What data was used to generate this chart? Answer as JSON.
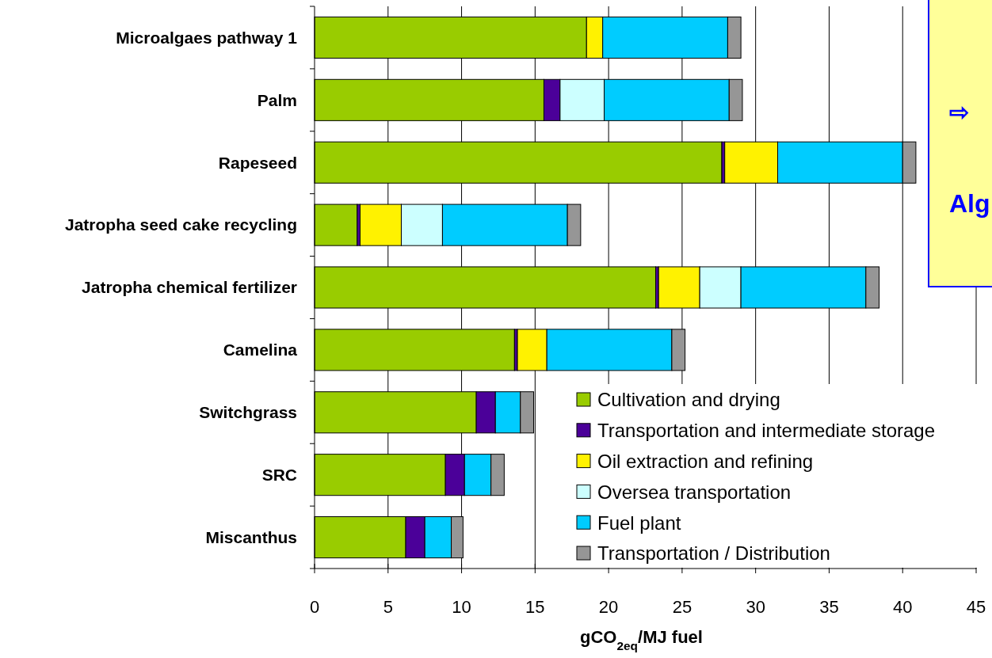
{
  "chart_data": {
    "type": "bar",
    "orientation": "horizontal",
    "stacked": true,
    "categories": [
      "Microalgaes pathway 1",
      "Palm",
      "Rapeseed",
      "Jatropha seed cake recycling",
      "Jatropha chemical fertilizer",
      "Camelina",
      "Switchgrass",
      "SRC",
      "Miscanthus"
    ],
    "series": [
      {
        "name": "Cultivation and drying",
        "color": "#99cc00",
        "values": [
          18.5,
          15.6,
          27.7,
          2.9,
          23.2,
          13.6,
          11.0,
          8.9,
          6.2
        ]
      },
      {
        "name": "Transportation and intermediate storage",
        "color": "#4b0099",
        "values": [
          null,
          1.1,
          0.2,
          0.2,
          0.2,
          0.2,
          1.3,
          1.3,
          1.3
        ]
      },
      {
        "name": "Oil extraction and refining",
        "color": "#fff200",
        "values": [
          1.1,
          null,
          3.6,
          2.8,
          2.8,
          2.0,
          null,
          null,
          null
        ]
      },
      {
        "name": "Oversea transportation",
        "color": "#ccffff",
        "values": [
          null,
          3.0,
          null,
          2.8,
          2.8,
          null,
          null,
          null,
          null
        ]
      },
      {
        "name": "Fuel plant",
        "color": "#00ccff",
        "values": [
          8.5,
          8.5,
          8.5,
          8.5,
          8.5,
          8.5,
          1.7,
          1.8,
          1.8
        ]
      },
      {
        "name": "Transportation / Distribution",
        "color": "#969696",
        "values": [
          0.9,
          0.9,
          0.9,
          0.9,
          0.9,
          0.9,
          0.9,
          0.9,
          0.8
        ]
      }
    ],
    "xlim": [
      0,
      45
    ],
    "xticks": [
      0,
      5,
      10,
      15,
      20,
      25,
      30,
      35,
      40,
      45
    ],
    "xlabel": "gCO$_{2eq}$/MJ fuel",
    "grid": "x",
    "legend": "bottom right",
    "annotations": [
      "⇨",
      "Alg"
    ]
  }
}
